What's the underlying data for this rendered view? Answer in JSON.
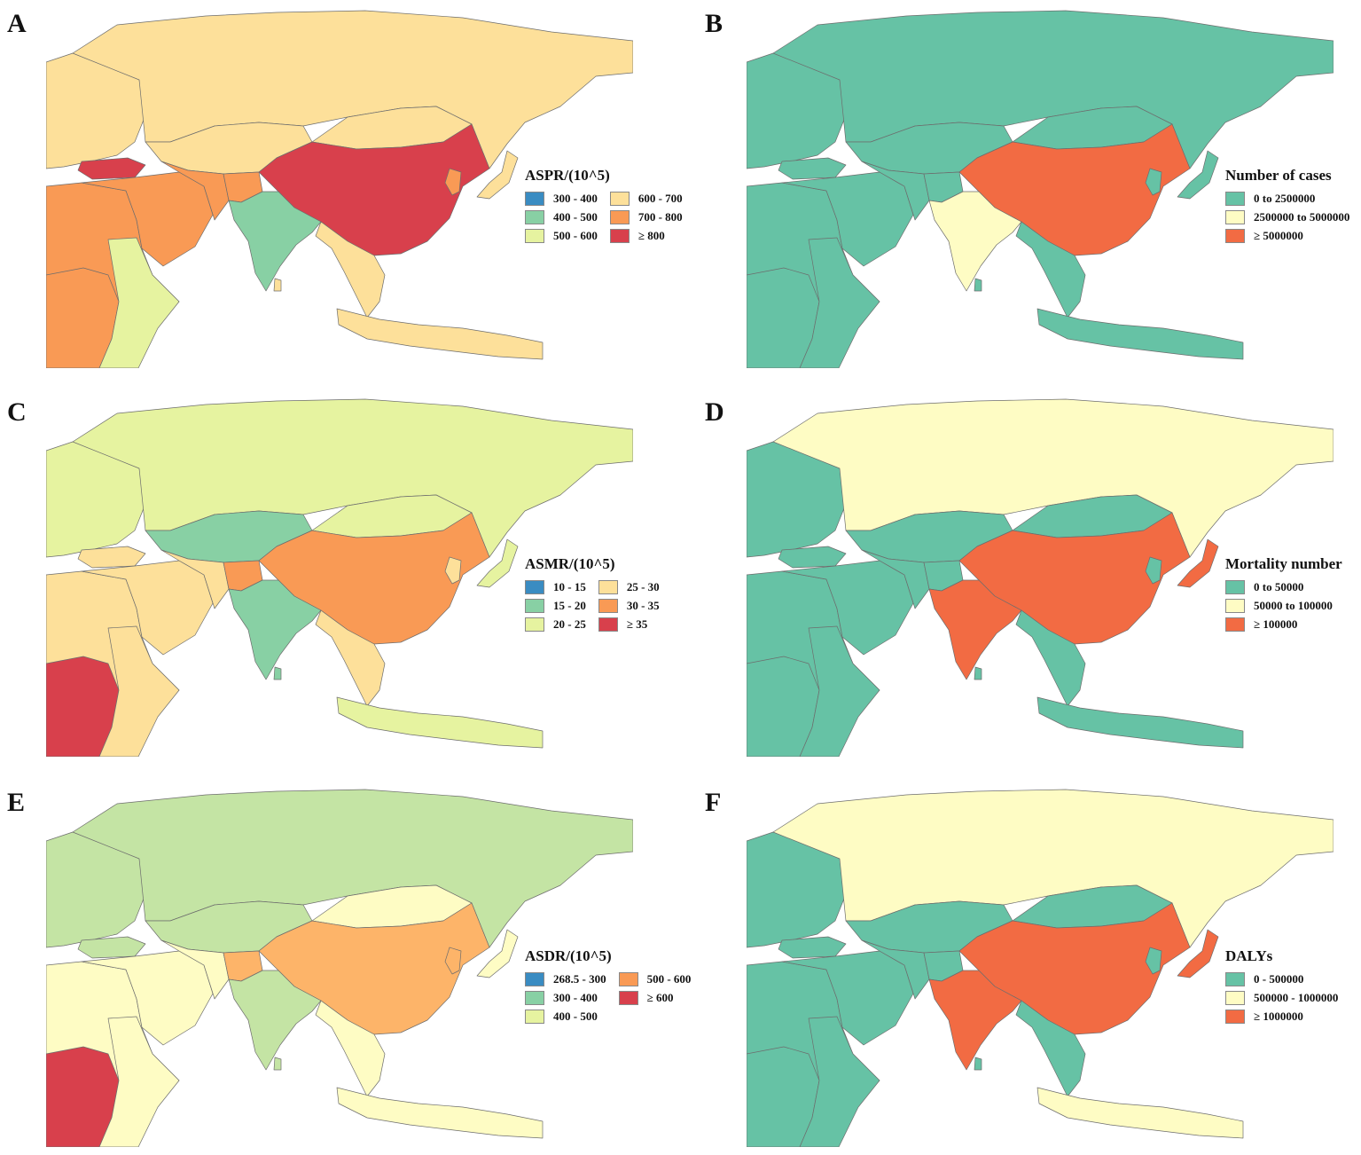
{
  "palette": {
    "blue": "#3a8cc2",
    "green_teal": "#88d0a4",
    "yellow_green": "#e6f3a0",
    "light_orange": "#fde09a",
    "orange": "#f99a55",
    "red": "#d8404c",
    "teal": "#66c2a5",
    "cream": "#fefcc4",
    "red_orange": "#f26b43",
    "ocean": "#ffffff",
    "border": "#6d6d6d"
  },
  "panels": [
    {
      "id": "A",
      "letter": "A",
      "legend_title": "ASPR/(10^5)",
      "legend_columns": 2,
      "legend_items": [
        {
          "label": "300 - 400",
          "color": "#3a8cc2"
        },
        {
          "label": "400 - 500",
          "color": "#88d0a4"
        },
        {
          "label": "500 - 600",
          "color": "#e6f3a0"
        },
        {
          "label": "600 - 700",
          "color": "#fde09a"
        },
        {
          "label": "700 - 800",
          "color": "#f99a55"
        },
        {
          "label": "≥ 800",
          "color": "#d8404c"
        }
      ],
      "regions": {
        "russia": "#fde09a",
        "europe": "#fde09a",
        "central_asia": "#fde09a",
        "mongolia": "#fde09a",
        "china": "#d8404c",
        "turkey": "#d8404c",
        "middle_east": "#f99a55",
        "iran": "#f99a55",
        "afghanistan": "#f99a55",
        "india": "#88d0a4",
        "southeast_asia": "#fde09a",
        "japan": "#fde09a",
        "korea": "#f99a55",
        "indonesia": "#fde09a",
        "africa": "#f99a55",
        "east_africa": "#e6f3a0",
        "central_africa": "#f99a55",
        "sri_lanka": "#fde09a"
      }
    },
    {
      "id": "B",
      "letter": "B",
      "legend_title": "Number of cases",
      "legend_columns": 1,
      "legend_items": [
        {
          "label": "0 to 2500000",
          "color": "#66c2a5"
        },
        {
          "label": "2500000 to 5000000",
          "color": "#fefcc4"
        },
        {
          "label": "≥ 5000000",
          "color": "#f26b43"
        }
      ],
      "regions": {
        "russia": "#66c2a5",
        "europe": "#66c2a5",
        "central_asia": "#66c2a5",
        "mongolia": "#66c2a5",
        "china": "#f26b43",
        "turkey": "#66c2a5",
        "middle_east": "#66c2a5",
        "iran": "#66c2a5",
        "afghanistan": "#66c2a5",
        "india": "#fefcc4",
        "southeast_asia": "#66c2a5",
        "japan": "#66c2a5",
        "korea": "#66c2a5",
        "indonesia": "#66c2a5",
        "africa": "#66c2a5",
        "east_africa": "#66c2a5",
        "central_africa": "#66c2a5",
        "sri_lanka": "#66c2a5"
      }
    },
    {
      "id": "C",
      "letter": "C",
      "legend_title": "ASMR/(10^5)",
      "legend_columns": 2,
      "legend_items": [
        {
          "label": "10 - 15",
          "color": "#3a8cc2"
        },
        {
          "label": "15 - 20",
          "color": "#88d0a4"
        },
        {
          "label": "20 - 25",
          "color": "#e6f3a0"
        },
        {
          "label": "25 - 30",
          "color": "#fde09a"
        },
        {
          "label": "30 - 35",
          "color": "#f99a55"
        },
        {
          "label": "≥ 35",
          "color": "#d8404c"
        }
      ],
      "regions": {
        "russia": "#e6f3a0",
        "europe": "#e6f3a0",
        "central_asia": "#88d0a4",
        "mongolia": "#e6f3a0",
        "china": "#f99a55",
        "turkey": "#fde09a",
        "middle_east": "#fde09a",
        "iran": "#fde09a",
        "afghanistan": "#f99a55",
        "india": "#88d0a4",
        "southeast_asia": "#fde09a",
        "japan": "#e6f3a0",
        "korea": "#fde09a",
        "indonesia": "#e6f3a0",
        "africa": "#fde09a",
        "east_africa": "#fde09a",
        "central_africa": "#d8404c",
        "sri_lanka": "#88d0a4"
      }
    },
    {
      "id": "D",
      "letter": "D",
      "legend_title": "Mortality number",
      "legend_columns": 1,
      "legend_items": [
        {
          "label": "0 to 50000",
          "color": "#66c2a5"
        },
        {
          "label": "50000 to 100000",
          "color": "#fefcc4"
        },
        {
          "label": "≥ 100000",
          "color": "#f26b43"
        }
      ],
      "regions": {
        "russia": "#fefcc4",
        "europe": "#66c2a5",
        "central_asia": "#66c2a5",
        "mongolia": "#66c2a5",
        "china": "#f26b43",
        "turkey": "#66c2a5",
        "middle_east": "#66c2a5",
        "iran": "#66c2a5",
        "afghanistan": "#66c2a5",
        "india": "#f26b43",
        "southeast_asia": "#66c2a5",
        "japan": "#f26b43",
        "korea": "#66c2a5",
        "indonesia": "#66c2a5",
        "africa": "#66c2a5",
        "east_africa": "#66c2a5",
        "central_africa": "#66c2a5",
        "sri_lanka": "#66c2a5"
      }
    },
    {
      "id": "E",
      "letter": "E",
      "legend_title": "ASDR/(10^5)",
      "legend_columns": 2,
      "legend_items": [
        {
          "label": "268.5 - 300",
          "color": "#3a8cc2"
        },
        {
          "label": "300 - 400",
          "color": "#88d0a4"
        },
        {
          "label": "400 - 500",
          "color": "#e6f3a0"
        },
        {
          "label": "500 - 600",
          "color": "#f99a55"
        },
        {
          "label": "≥ 600",
          "color": "#d8404c"
        }
      ],
      "regions": {
        "russia": "#c4e4a4",
        "europe": "#c4e4a4",
        "central_asia": "#c4e4a4",
        "mongolia": "#fefcc4",
        "china": "#fdb469",
        "turkey": "#c4e4a4",
        "middle_east": "#fefcc4",
        "iran": "#fefcc4",
        "afghanistan": "#fdb469",
        "india": "#c4e4a4",
        "southeast_asia": "#fefcc4",
        "japan": "#fefcc4",
        "korea": "#fdb469",
        "indonesia": "#fefcc4",
        "africa": "#fefcc4",
        "east_africa": "#fefcc4",
        "central_africa": "#d8404c",
        "sri_lanka": "#c4e4a4"
      }
    },
    {
      "id": "F",
      "letter": "F",
      "legend_title": "DALYs",
      "legend_columns": 1,
      "legend_items": [
        {
          "label": "0 - 500000",
          "color": "#66c2a5"
        },
        {
          "label": "500000 - 1000000",
          "color": "#fefcc4"
        },
        {
          "label": "≥ 1000000",
          "color": "#f26b43"
        }
      ],
      "regions": {
        "russia": "#fefcc4",
        "europe": "#66c2a5",
        "central_asia": "#66c2a5",
        "mongolia": "#66c2a5",
        "china": "#f26b43",
        "turkey": "#66c2a5",
        "middle_east": "#66c2a5",
        "iran": "#66c2a5",
        "afghanistan": "#66c2a5",
        "india": "#f26b43",
        "southeast_asia": "#66c2a5",
        "japan": "#f26b43",
        "korea": "#66c2a5",
        "indonesia": "#fefcc4",
        "africa": "#66c2a5",
        "east_africa": "#66c2a5",
        "central_africa": "#66c2a5",
        "sri_lanka": "#66c2a5"
      }
    }
  ]
}
